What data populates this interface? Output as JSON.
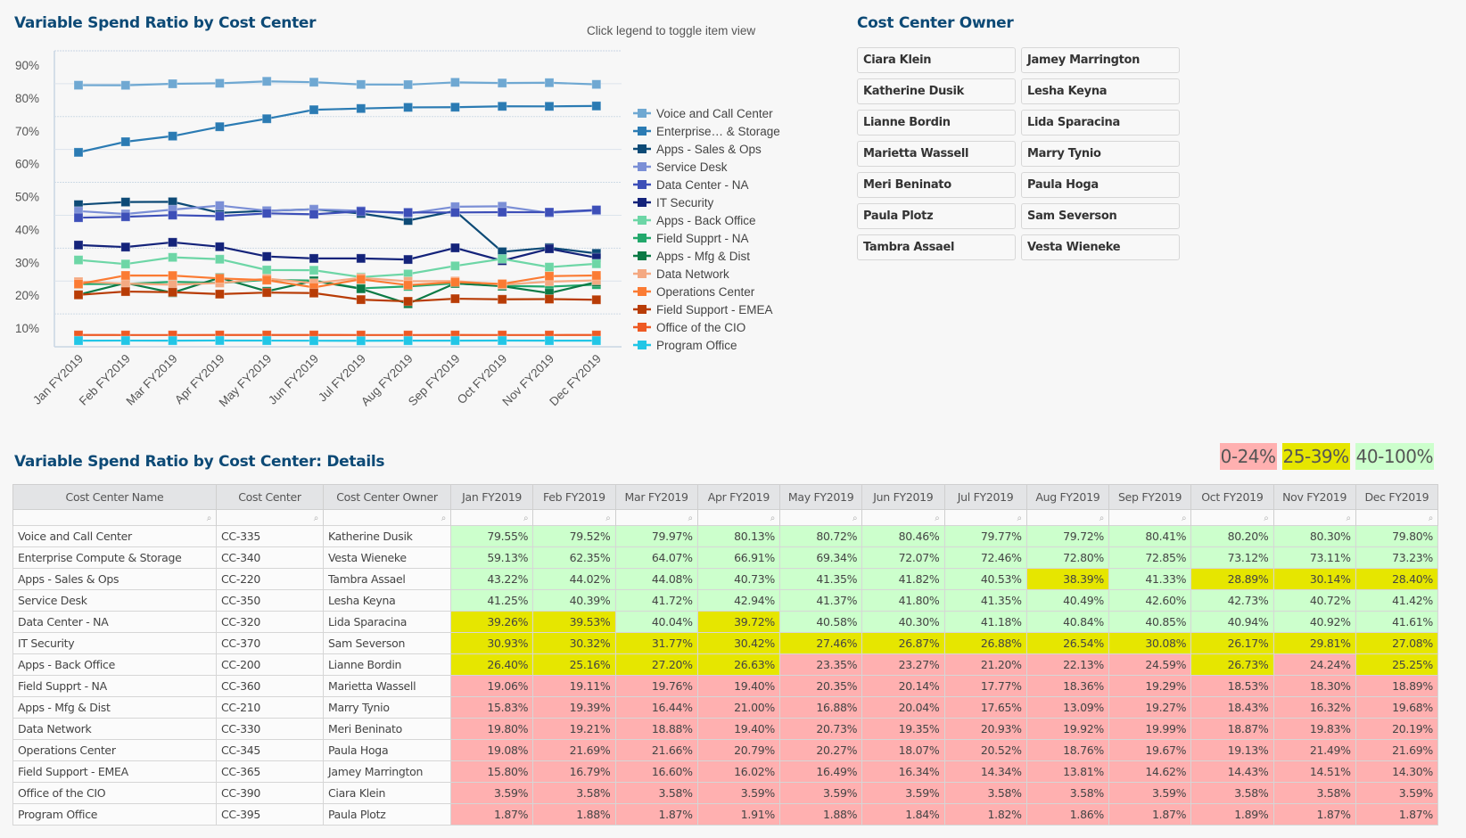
{
  "chart_title": "Variable Spend Ratio by Cost Center",
  "chart_hint": "Click legend to toggle item view",
  "owner_panel": {
    "title": "Cost Center Owner",
    "owners": [
      "Ciara Klein",
      "Jamey Marrington",
      "Katherine Dusik",
      "Lesha Keyna",
      "Lianne Bordin",
      "Lida Sparacina",
      "Marietta Wassell",
      "Marry Tynio",
      "Meri Beninato",
      "Paula Hoga",
      "Paula Plotz",
      "Sam Severson",
      "Tambra Assael",
      "Vesta Wieneke"
    ]
  },
  "details": {
    "title": "Variable Spend Ratio by Cost Center: Details",
    "ranges": [
      {
        "label": "0-24%",
        "color": "#ffb0b0"
      },
      {
        "label": "25-39%",
        "color": "#e6e600"
      },
      {
        "label": "40-100%",
        "color": "#ccffcc"
      }
    ],
    "columns": [
      "Cost Center Name",
      "Cost Center",
      "Cost Center Owner",
      "Jan FY2019",
      "Feb FY2019",
      "Mar FY2019",
      "Apr FY2019",
      "May FY2019",
      "Jun FY2019",
      "Jul FY2019",
      "Aug FY2019",
      "Sep FY2019",
      "Oct FY2019",
      "Nov FY2019",
      "Dec FY2019"
    ],
    "rows": [
      {
        "name": "Voice and Call Center",
        "code": "CC-335",
        "owner": "Katherine Dusik",
        "values": [
          "79.55%",
          "79.52%",
          "79.97%",
          "80.13%",
          "80.72%",
          "80.46%",
          "79.77%",
          "79.72%",
          "80.41%",
          "80.20%",
          "80.30%",
          "79.80%"
        ]
      },
      {
        "name": "Enterprise Compute & Storage",
        "code": "CC-340",
        "owner": "Vesta Wieneke",
        "values": [
          "59.13%",
          "62.35%",
          "64.07%",
          "66.91%",
          "69.34%",
          "72.07%",
          "72.46%",
          "72.80%",
          "72.85%",
          "73.12%",
          "73.11%",
          "73.23%"
        ]
      },
      {
        "name": "Apps - Sales & Ops",
        "code": "CC-220",
        "owner": "Tambra Assael",
        "values": [
          "43.22%",
          "44.02%",
          "44.08%",
          "40.73%",
          "41.35%",
          "41.82%",
          "40.53%",
          "38.39%",
          "41.33%",
          "28.89%",
          "30.14%",
          "28.40%"
        ]
      },
      {
        "name": "Service Desk",
        "code": "CC-350",
        "owner": "Lesha Keyna",
        "values": [
          "41.25%",
          "40.39%",
          "41.72%",
          "42.94%",
          "41.37%",
          "41.80%",
          "41.35%",
          "40.49%",
          "42.60%",
          "42.73%",
          "40.72%",
          "41.42%"
        ]
      },
      {
        "name": "Data Center - NA",
        "code": "CC-320",
        "owner": "Lida Sparacina",
        "values": [
          "39.26%",
          "39.53%",
          "40.04%",
          "39.72%",
          "40.58%",
          "40.30%",
          "41.18%",
          "40.84%",
          "40.85%",
          "40.94%",
          "40.92%",
          "41.61%"
        ]
      },
      {
        "name": "IT Security",
        "code": "CC-370",
        "owner": "Sam Severson",
        "values": [
          "30.93%",
          "30.32%",
          "31.77%",
          "30.42%",
          "27.46%",
          "26.87%",
          "26.88%",
          "26.54%",
          "30.08%",
          "26.17%",
          "29.81%",
          "27.08%"
        ]
      },
      {
        "name": "Apps - Back Office",
        "code": "CC-200",
        "owner": "Lianne Bordin",
        "values": [
          "26.40%",
          "25.16%",
          "27.20%",
          "26.63%",
          "23.35%",
          "23.27%",
          "21.20%",
          "22.13%",
          "24.59%",
          "26.73%",
          "24.24%",
          "25.25%"
        ]
      },
      {
        "name": "Field Supprt - NA",
        "code": "CC-360",
        "owner": "Marietta Wassell",
        "values": [
          "19.06%",
          "19.11%",
          "19.76%",
          "19.40%",
          "20.35%",
          "20.14%",
          "17.77%",
          "18.36%",
          "19.29%",
          "18.53%",
          "18.30%",
          "18.89%"
        ]
      },
      {
        "name": "Apps - Mfg & Dist",
        "code": "CC-210",
        "owner": "Marry Tynio",
        "values": [
          "15.83%",
          "19.39%",
          "16.44%",
          "21.00%",
          "16.88%",
          "20.04%",
          "17.65%",
          "13.09%",
          "19.27%",
          "18.43%",
          "16.32%",
          "19.68%"
        ]
      },
      {
        "name": "Data Network",
        "code": "CC-330",
        "owner": "Meri Beninato",
        "values": [
          "19.80%",
          "19.21%",
          "18.88%",
          "19.40%",
          "20.73%",
          "19.35%",
          "20.93%",
          "19.92%",
          "19.99%",
          "18.87%",
          "19.83%",
          "20.19%"
        ]
      },
      {
        "name": "Operations Center",
        "code": "CC-345",
        "owner": "Paula Hoga",
        "values": [
          "19.08%",
          "21.69%",
          "21.66%",
          "20.79%",
          "20.27%",
          "18.07%",
          "20.52%",
          "18.76%",
          "19.67%",
          "19.13%",
          "21.49%",
          "21.69%"
        ]
      },
      {
        "name": "Field Support - EMEA",
        "code": "CC-365",
        "owner": "Jamey Marrington",
        "values": [
          "15.80%",
          "16.79%",
          "16.60%",
          "16.02%",
          "16.49%",
          "16.34%",
          "14.34%",
          "13.81%",
          "14.62%",
          "14.43%",
          "14.51%",
          "14.30%"
        ]
      },
      {
        "name": "Office of the CIO",
        "code": "CC-390",
        "owner": "Ciara Klein",
        "values": [
          "3.59%",
          "3.58%",
          "3.58%",
          "3.59%",
          "3.59%",
          "3.59%",
          "3.58%",
          "3.58%",
          "3.59%",
          "3.58%",
          "3.58%",
          "3.59%"
        ]
      },
      {
        "name": "Program Office",
        "code": "CC-395",
        "owner": "Paula Plotz",
        "values": [
          "1.87%",
          "1.88%",
          "1.87%",
          "1.91%",
          "1.88%",
          "1.84%",
          "1.82%",
          "1.86%",
          "1.87%",
          "1.89%",
          "1.87%",
          "1.87%"
        ]
      }
    ]
  },
  "chart_data": {
    "type": "line",
    "title": "Variable Spend Ratio by Cost Center",
    "xlabel": "",
    "ylabel": "",
    "ylim": [
      0,
      90
    ],
    "yticks": [
      "10%",
      "20%",
      "30%",
      "40%",
      "50%",
      "60%",
      "70%",
      "80%",
      "90%"
    ],
    "grid": true,
    "legend_position": "right",
    "categories": [
      "Jan FY2019",
      "Feb FY2019",
      "Mar FY2019",
      "Apr FY2019",
      "May FY2019",
      "Jun FY2019",
      "Jul FY2019",
      "Aug FY2019",
      "Sep FY2019",
      "Oct FY2019",
      "Nov FY2019",
      "Dec FY2019"
    ],
    "series": [
      {
        "name": "Voice and Call Center",
        "color": "#6fa8d2",
        "values": [
          79.55,
          79.52,
          79.97,
          80.13,
          80.72,
          80.46,
          79.77,
          79.72,
          80.41,
          80.2,
          80.3,
          79.8
        ]
      },
      {
        "name": "Enterprise… & Storage",
        "color": "#2b7bb3",
        "values": [
          59.13,
          62.35,
          64.07,
          66.91,
          69.34,
          72.07,
          72.46,
          72.8,
          72.85,
          73.12,
          73.11,
          73.23
        ]
      },
      {
        "name": "Apps - Sales & Ops",
        "color": "#0d4a76",
        "values": [
          43.22,
          44.02,
          44.08,
          40.73,
          41.35,
          41.82,
          40.53,
          38.39,
          41.33,
          28.89,
          30.14,
          28.4
        ]
      },
      {
        "name": "Service Desk",
        "color": "#7b8fd6",
        "values": [
          41.25,
          40.39,
          41.72,
          42.94,
          41.37,
          41.8,
          41.35,
          40.49,
          42.6,
          42.73,
          40.72,
          41.42
        ]
      },
      {
        "name": "Data Center - NA",
        "color": "#3d4fb8",
        "values": [
          39.26,
          39.53,
          40.04,
          39.72,
          40.58,
          40.3,
          41.18,
          40.84,
          40.85,
          40.94,
          40.92,
          41.61
        ]
      },
      {
        "name": "IT Security",
        "color": "#14237a",
        "values": [
          30.93,
          30.32,
          31.77,
          30.42,
          27.46,
          26.87,
          26.88,
          26.54,
          30.08,
          26.17,
          29.81,
          27.08
        ]
      },
      {
        "name": "Apps - Back Office",
        "color": "#6dd6a6",
        "values": [
          26.4,
          25.16,
          27.2,
          26.63,
          23.35,
          23.27,
          21.2,
          22.13,
          24.59,
          26.73,
          24.24,
          25.25
        ]
      },
      {
        "name": "Field Supprt - NA",
        "color": "#22a86b",
        "values": [
          19.06,
          19.11,
          19.76,
          19.4,
          20.35,
          20.14,
          17.77,
          18.36,
          19.29,
          18.53,
          18.3,
          18.89
        ]
      },
      {
        "name": "Apps - Mfg & Dist",
        "color": "#0b7a45",
        "values": [
          15.83,
          19.39,
          16.44,
          21.0,
          16.88,
          20.04,
          17.65,
          13.09,
          19.27,
          18.43,
          16.32,
          19.68
        ]
      },
      {
        "name": "Data Network",
        "color": "#f4a982",
        "values": [
          19.8,
          19.21,
          18.88,
          19.4,
          20.73,
          19.35,
          20.93,
          19.92,
          19.99,
          18.87,
          19.83,
          20.19
        ]
      },
      {
        "name": "Operations Center",
        "color": "#fb7b33",
        "values": [
          19.08,
          21.69,
          21.66,
          20.79,
          20.27,
          18.07,
          20.52,
          18.76,
          19.67,
          19.13,
          21.49,
          21.69
        ]
      },
      {
        "name": "Field Support - EMEA",
        "color": "#b83c06",
        "values": [
          15.8,
          16.79,
          16.6,
          16.02,
          16.49,
          16.34,
          14.34,
          13.81,
          14.62,
          14.43,
          14.51,
          14.3
        ]
      },
      {
        "name": "Office of the CIO",
        "color": "#ee5a24",
        "values": [
          3.59,
          3.58,
          3.58,
          3.59,
          3.59,
          3.59,
          3.58,
          3.58,
          3.59,
          3.58,
          3.58,
          3.59
        ]
      },
      {
        "name": "Program Office",
        "color": "#22c6e6",
        "values": [
          1.87,
          1.88,
          1.87,
          1.91,
          1.88,
          1.84,
          1.82,
          1.86,
          1.87,
          1.89,
          1.87,
          1.87
        ]
      }
    ]
  }
}
